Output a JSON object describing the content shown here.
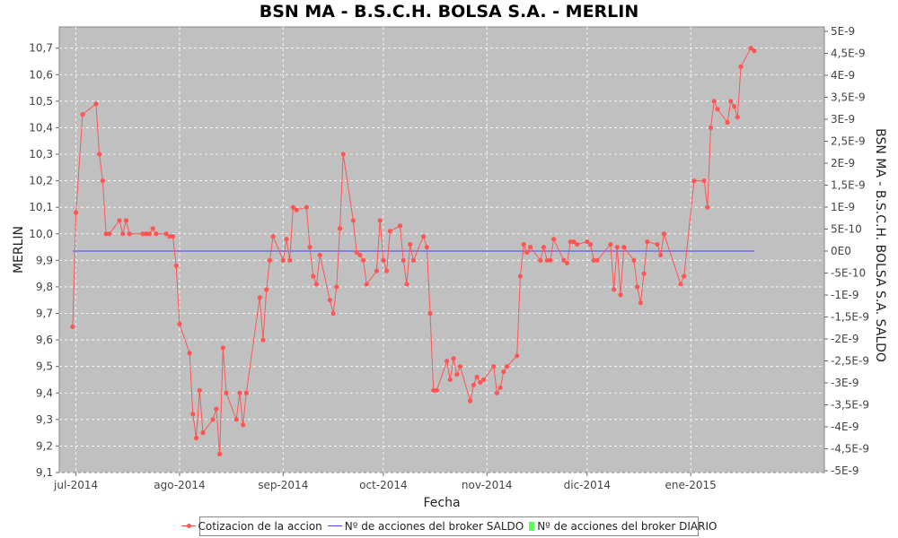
{
  "chart_data": {
    "type": "line",
    "title": "BSN MA - B.S.C.H. BOLSA S.A. - MERLIN",
    "xlabel": "Fecha",
    "ylabel": "MERLIN",
    "y2label": "BSN MA - B.S.C.H. BOLSA S.A. SALDO",
    "xlim": [
      "2014-06-26",
      "2015-02-10"
    ],
    "ylim": [
      9.1,
      10.78
    ],
    "y2lim": [
      "-5E-9",
      "5E-9"
    ],
    "grid": true,
    "legend_position": "bottom",
    "x_ticks": [
      {
        "date": "2014-07-01",
        "label": "jul-2014"
      },
      {
        "date": "2014-08-01",
        "label": "ago-2014"
      },
      {
        "date": "2014-09-01",
        "label": "sep-2014"
      },
      {
        "date": "2014-10-01",
        "label": "oct-2014"
      },
      {
        "date": "2014-11-01",
        "label": "nov-2014"
      },
      {
        "date": "2014-12-01",
        "label": "dic-2014"
      },
      {
        "date": "2015-01-01",
        "label": "ene-2015"
      }
    ],
    "y_ticks": [
      "9,1",
      "9,2",
      "9,3",
      "9,4",
      "9,5",
      "9,6",
      "9,7",
      "9,8",
      "9,9",
      "10,0",
      "10,1",
      "10,2",
      "10,3",
      "10,4",
      "10,5",
      "10,6",
      "10,7"
    ],
    "y2_ticks": [
      "5E-9",
      "4,5E-9",
      "4E-9",
      "3,5E-9",
      "3E-9",
      "2,5E-9",
      "2E-9",
      "1,5E-9",
      "1E-9",
      "5E-10",
      "0E0",
      "-5E-10",
      "-1E-9",
      "-1,5E-9",
      "-2E-9",
      "-2,5E-9",
      "-3E-9",
      "-3,5E-9",
      "-4E-9",
      "-4,5E-9",
      "-5E-9"
    ],
    "series": [
      {
        "name": "Cotizacion de la accion",
        "color": "#ff5555",
        "style": "line-markers",
        "axis": "left",
        "points": [
          [
            "2014-06-30",
            9.65
          ],
          [
            "2014-07-01",
            10.08
          ],
          [
            "2014-07-03",
            10.45
          ],
          [
            "2014-07-07",
            10.49
          ],
          [
            "2014-07-08",
            10.3
          ],
          [
            "2014-07-09",
            10.2
          ],
          [
            "2014-07-10",
            10.0
          ],
          [
            "2014-07-11",
            10.0
          ],
          [
            "2014-07-14",
            10.05
          ],
          [
            "2014-07-15",
            10.0
          ],
          [
            "2014-07-16",
            10.05
          ],
          [
            "2014-07-17",
            10.0
          ],
          [
            "2014-07-21",
            10.0
          ],
          [
            "2014-07-22",
            10.0
          ],
          [
            "2014-07-23",
            10.0
          ],
          [
            "2014-07-24",
            10.02
          ],
          [
            "2014-07-25",
            10.0
          ],
          [
            "2014-07-28",
            10.0
          ],
          [
            "2014-07-29",
            9.99
          ],
          [
            "2014-07-30",
            9.99
          ],
          [
            "2014-07-31",
            9.88
          ],
          [
            "2014-08-01",
            9.66
          ],
          [
            "2014-08-04",
            9.55
          ],
          [
            "2014-08-05",
            9.32
          ],
          [
            "2014-08-06",
            9.23
          ],
          [
            "2014-08-07",
            9.41
          ],
          [
            "2014-08-08",
            9.25
          ],
          [
            "2014-08-11",
            9.3
          ],
          [
            "2014-08-12",
            9.34
          ],
          [
            "2014-08-13",
            9.17
          ],
          [
            "2014-08-14",
            9.57
          ],
          [
            "2014-08-15",
            9.4
          ],
          [
            "2014-08-18",
            9.3
          ],
          [
            "2014-08-19",
            9.4
          ],
          [
            "2014-08-20",
            9.28
          ],
          [
            "2014-08-21",
            9.4
          ],
          [
            "2014-08-25",
            9.76
          ],
          [
            "2014-08-26",
            9.6
          ],
          [
            "2014-08-27",
            9.79
          ],
          [
            "2014-08-28",
            9.9
          ],
          [
            "2014-08-29",
            9.99
          ],
          [
            "2014-09-01",
            9.9
          ],
          [
            "2014-09-02",
            9.98
          ],
          [
            "2014-09-03",
            9.9
          ],
          [
            "2014-09-04",
            10.1
          ],
          [
            "2014-09-05",
            10.09
          ],
          [
            "2014-09-08",
            10.1
          ],
          [
            "2014-09-09",
            9.95
          ],
          [
            "2014-09-10",
            9.84
          ],
          [
            "2014-09-11",
            9.81
          ],
          [
            "2014-09-12",
            9.92
          ],
          [
            "2014-09-15",
            9.75
          ],
          [
            "2014-09-16",
            9.7
          ],
          [
            "2014-09-17",
            9.8
          ],
          [
            "2014-09-18",
            10.02
          ],
          [
            "2014-09-19",
            10.3
          ],
          [
            "2014-09-22",
            10.05
          ],
          [
            "2014-09-23",
            9.93
          ],
          [
            "2014-09-24",
            9.92
          ],
          [
            "2014-09-25",
            9.9
          ],
          [
            "2014-09-26",
            9.81
          ],
          [
            "2014-09-29",
            9.86
          ],
          [
            "2014-09-30",
            10.05
          ],
          [
            "2014-10-01",
            9.9
          ],
          [
            "2014-10-02",
            9.86
          ],
          [
            "2014-10-03",
            10.01
          ],
          [
            "2014-10-06",
            10.03
          ],
          [
            "2014-10-07",
            9.9
          ],
          [
            "2014-10-08",
            9.81
          ],
          [
            "2014-10-09",
            9.96
          ],
          [
            "2014-10-10",
            9.9
          ],
          [
            "2014-10-13",
            9.99
          ],
          [
            "2014-10-14",
            9.95
          ],
          [
            "2014-10-15",
            9.7
          ],
          [
            "2014-10-16",
            9.41
          ],
          [
            "2014-10-17",
            9.41
          ],
          [
            "2014-10-20",
            9.52
          ],
          [
            "2014-10-21",
            9.45
          ],
          [
            "2014-10-22",
            9.53
          ],
          [
            "2014-10-23",
            9.47
          ],
          [
            "2014-10-24",
            9.5
          ],
          [
            "2014-10-27",
            9.37
          ],
          [
            "2014-10-28",
            9.43
          ],
          [
            "2014-10-29",
            9.46
          ],
          [
            "2014-10-30",
            9.44
          ],
          [
            "2014-10-31",
            9.45
          ],
          [
            "2014-11-03",
            9.5
          ],
          [
            "2014-11-04",
            9.4
          ],
          [
            "2014-11-05",
            9.42
          ],
          [
            "2014-11-06",
            9.48
          ],
          [
            "2014-11-07",
            9.5
          ],
          [
            "2014-11-10",
            9.54
          ],
          [
            "2014-11-11",
            9.84
          ],
          [
            "2014-11-12",
            9.96
          ],
          [
            "2014-11-13",
            9.93
          ],
          [
            "2014-11-14",
            9.95
          ],
          [
            "2014-11-17",
            9.9
          ],
          [
            "2014-11-18",
            9.95
          ],
          [
            "2014-11-19",
            9.9
          ],
          [
            "2014-11-20",
            9.9
          ],
          [
            "2014-11-21",
            9.98
          ],
          [
            "2014-11-24",
            9.9
          ],
          [
            "2014-11-25",
            9.89
          ],
          [
            "2014-11-26",
            9.97
          ],
          [
            "2014-11-27",
            9.97
          ],
          [
            "2014-11-28",
            9.96
          ],
          [
            "2014-12-01",
            9.97
          ],
          [
            "2014-12-02",
            9.96
          ],
          [
            "2014-12-03",
            9.9
          ],
          [
            "2014-12-04",
            9.9
          ],
          [
            "2014-12-08",
            9.96
          ],
          [
            "2014-12-09",
            9.79
          ],
          [
            "2014-12-10",
            9.95
          ],
          [
            "2014-12-11",
            9.77
          ],
          [
            "2014-12-12",
            9.95
          ],
          [
            "2014-12-15",
            9.9
          ],
          [
            "2014-12-16",
            9.8
          ],
          [
            "2014-12-17",
            9.74
          ],
          [
            "2014-12-18",
            9.85
          ],
          [
            "2014-12-19",
            9.97
          ],
          [
            "2014-12-22",
            9.96
          ],
          [
            "2014-12-23",
            9.92
          ],
          [
            "2014-12-24",
            10.0
          ],
          [
            "2014-12-29",
            9.81
          ],
          [
            "2014-12-30",
            9.84
          ],
          [
            "2015-01-02",
            10.2
          ],
          [
            "2015-01-05",
            10.2
          ],
          [
            "2015-01-06",
            10.1
          ],
          [
            "2015-01-07",
            10.4
          ],
          [
            "2015-01-08",
            10.5
          ],
          [
            "2015-01-09",
            10.47
          ],
          [
            "2015-01-12",
            10.42
          ],
          [
            "2015-01-13",
            10.5
          ],
          [
            "2015-01-14",
            10.48
          ],
          [
            "2015-01-15",
            10.44
          ],
          [
            "2015-01-16",
            10.63
          ],
          [
            "2015-01-19",
            10.7
          ],
          [
            "2015-01-20",
            10.69
          ]
        ]
      },
      {
        "name": "Nº de acciones del broker SALDO",
        "color": "#4444ff",
        "style": "line",
        "axis": "right",
        "x_range": [
          "2014-06-30",
          "2015-01-20"
        ],
        "value": 0
      },
      {
        "name": "Nº de acciones del broker DIARIO",
        "color": "#55ff55",
        "style": "bar",
        "axis": "right",
        "points": []
      }
    ]
  }
}
